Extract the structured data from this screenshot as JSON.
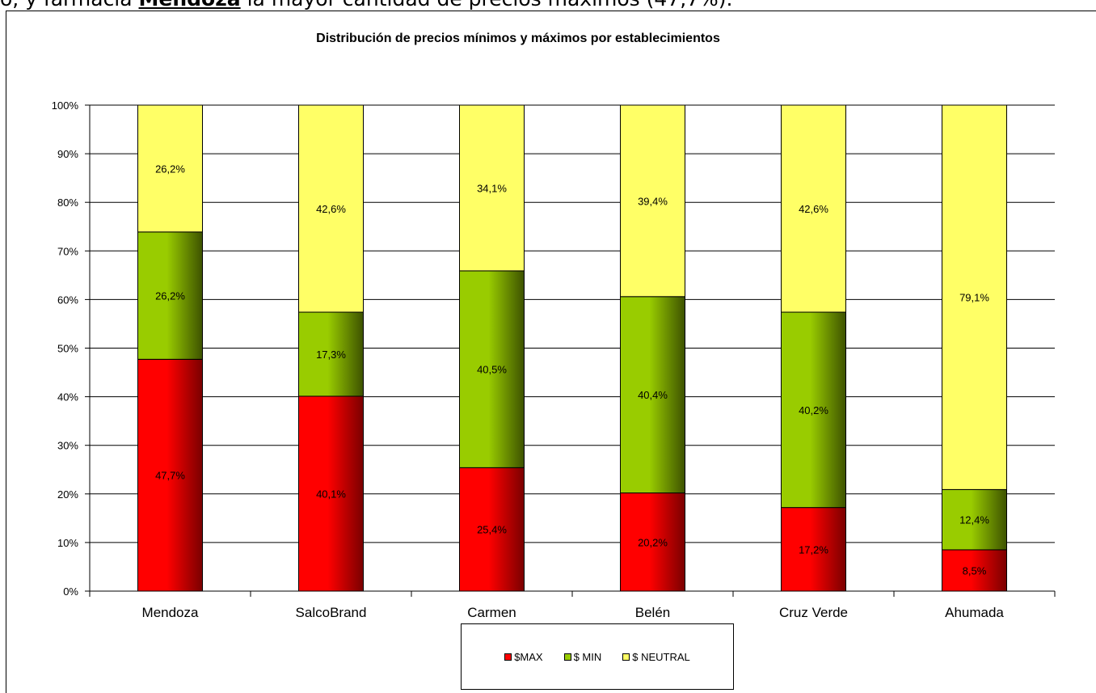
{
  "document": {
    "line_prefix": "o, y farmacia ",
    "line_bold": "Mendoza",
    "line_suffix": " la mayor cantidad de precios máximos (47,7%)."
  },
  "chart_data": {
    "type": "bar",
    "stacked": true,
    "title": "Distribución de precios mínimos y máximos por establecimientos",
    "categories": [
      "Mendoza",
      "SalcoBrand",
      "Carmen",
      "Belén",
      "Cruz Verde",
      "Ahumada"
    ],
    "series": [
      {
        "name": "$MAX",
        "values": [
          47.7,
          40.1,
          25.4,
          20.2,
          17.2,
          8.5
        ],
        "labels": [
          "47,7%",
          "40,1%",
          "25,4%",
          "20,2%",
          "17,2%",
          "8,5%"
        ],
        "color": "#ff0000",
        "color_dark": "#7a0000"
      },
      {
        "name": "$ MIN",
        "values": [
          26.2,
          17.3,
          40.5,
          40.4,
          40.2,
          12.4
        ],
        "labels": [
          "26,2%",
          "17,3%",
          "40,5%",
          "40,4%",
          "40,2%",
          "12,4%"
        ],
        "color": "#99cc00",
        "color_dark": "#3d5200"
      },
      {
        "name": "$ NEUTRAL",
        "values": [
          26.2,
          42.6,
          34.1,
          39.4,
          42.6,
          79.1
        ],
        "labels": [
          "26,2%",
          "42,6%",
          "34,1%",
          "39,4%",
          "42,6%",
          "79,1%"
        ],
        "color": "#ffff66",
        "color_dark": "#ffff66"
      }
    ],
    "ylim": [
      0,
      100
    ],
    "yticks": [
      "0%",
      "10%",
      "20%",
      "30%",
      "40%",
      "50%",
      "60%",
      "70%",
      "80%",
      "90%",
      "100%"
    ],
    "xlabel": "",
    "ylabel": "",
    "grid": true,
    "legend_position": "bottom"
  }
}
